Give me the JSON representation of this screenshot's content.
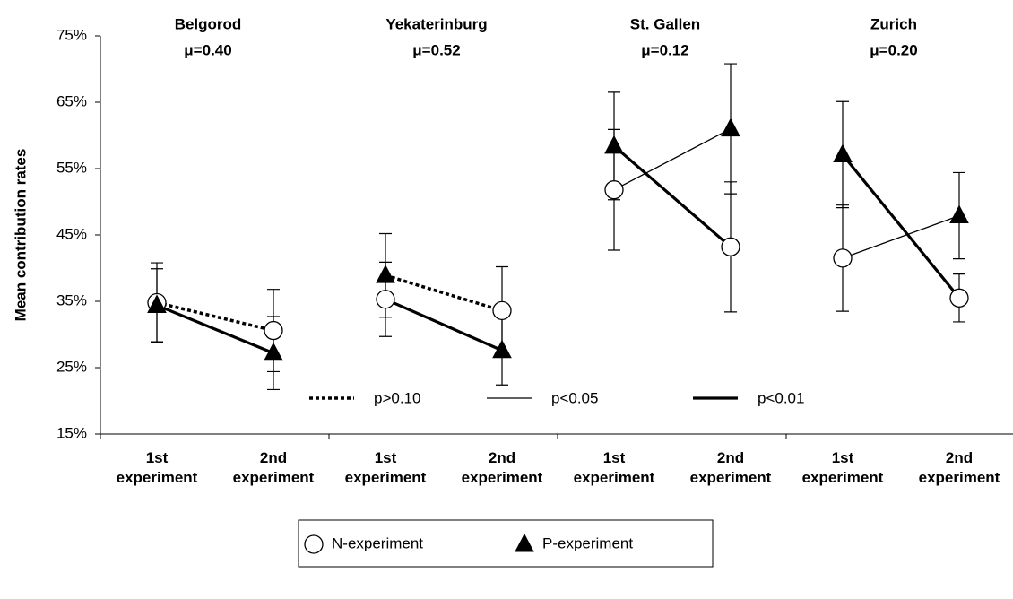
{
  "chart_data": {
    "type": "line",
    "y_label": "Mean contribution rates",
    "ylim": [
      15,
      75
    ],
    "yticks": [
      {
        "value": 15,
        "label": "15%"
      },
      {
        "value": 25,
        "label": "25%"
      },
      {
        "value": 35,
        "label": "35%"
      },
      {
        "value": 45,
        "label": "45%"
      },
      {
        "value": 55,
        "label": "55%"
      },
      {
        "value": 65,
        "label": "65%"
      },
      {
        "value": 75,
        "label": "75%"
      }
    ],
    "categories": [
      "1st experiment",
      "2nd experiment",
      "1st experiment",
      "2nd experiment",
      "1st experiment",
      "2nd experiment",
      "1st experiment",
      "2nd experiment"
    ],
    "series": [
      {
        "name": "N-experiment",
        "marker": "circle",
        "color": "#ffffff"
      },
      {
        "name": "P-experiment",
        "marker": "triangle",
        "color": "#000000"
      }
    ],
    "line_legend": [
      {
        "label": "p>0.10",
        "style": "dotted"
      },
      {
        "label": "p<0.05",
        "style": "thin"
      },
      {
        "label": "p<0.01",
        "style": "thick"
      }
    ],
    "groups": [
      {
        "name": "Belgorod",
        "mu": "μ=0.40",
        "lines": [
          {
            "significance": "p>0.10",
            "markers": [
              "N-experiment",
              "N-experiment"
            ],
            "values": [
              34.8,
              30.6
            ],
            "errors": [
              6.0,
              6.2
            ]
          },
          {
            "significance": "p<0.01",
            "markers": [
              "P-experiment",
              "P-experiment"
            ],
            "values": [
              34.4,
              27.2
            ],
            "errors": [
              5.5,
              5.5
            ]
          }
        ]
      },
      {
        "name": "Yekaterinburg",
        "mu": "μ=0.52",
        "lines": [
          {
            "significance": "p>0.10",
            "markers": [
              "P-experiment",
              "N-experiment"
            ],
            "values": [
              38.9,
              33.6
            ],
            "errors": [
              6.3,
              6.6
            ]
          },
          {
            "significance": "p<0.01",
            "markers": [
              "N-experiment",
              "P-experiment"
            ],
            "values": [
              35.3,
              27.6
            ],
            "errors": [
              5.6,
              5.2
            ]
          }
        ]
      },
      {
        "name": "St. Gallen",
        "mu": "μ=0.12",
        "lines": [
          {
            "significance": "p<0.05",
            "markers": [
              "N-experiment",
              "P-experiment"
            ],
            "values": [
              51.8,
              61.0
            ],
            "errors": [
              9.1,
              9.8
            ]
          },
          {
            "significance": "p<0.01",
            "markers": [
              "P-experiment",
              "N-experiment"
            ],
            "values": [
              58.4,
              43.2
            ],
            "errors": [
              8.1,
              9.8
            ]
          }
        ]
      },
      {
        "name": "Zurich",
        "mu": "μ=0.20",
        "lines": [
          {
            "significance": "p<0.05",
            "markers": [
              "N-experiment",
              "P-experiment"
            ],
            "values": [
              41.5,
              47.9
            ],
            "errors": [
              8.0,
              6.5
            ]
          },
          {
            "significance": "p<0.01",
            "markers": [
              "P-experiment",
              "N-experiment"
            ],
            "values": [
              57.1,
              35.5
            ],
            "errors": [
              8.0,
              3.6
            ]
          }
        ]
      }
    ]
  }
}
